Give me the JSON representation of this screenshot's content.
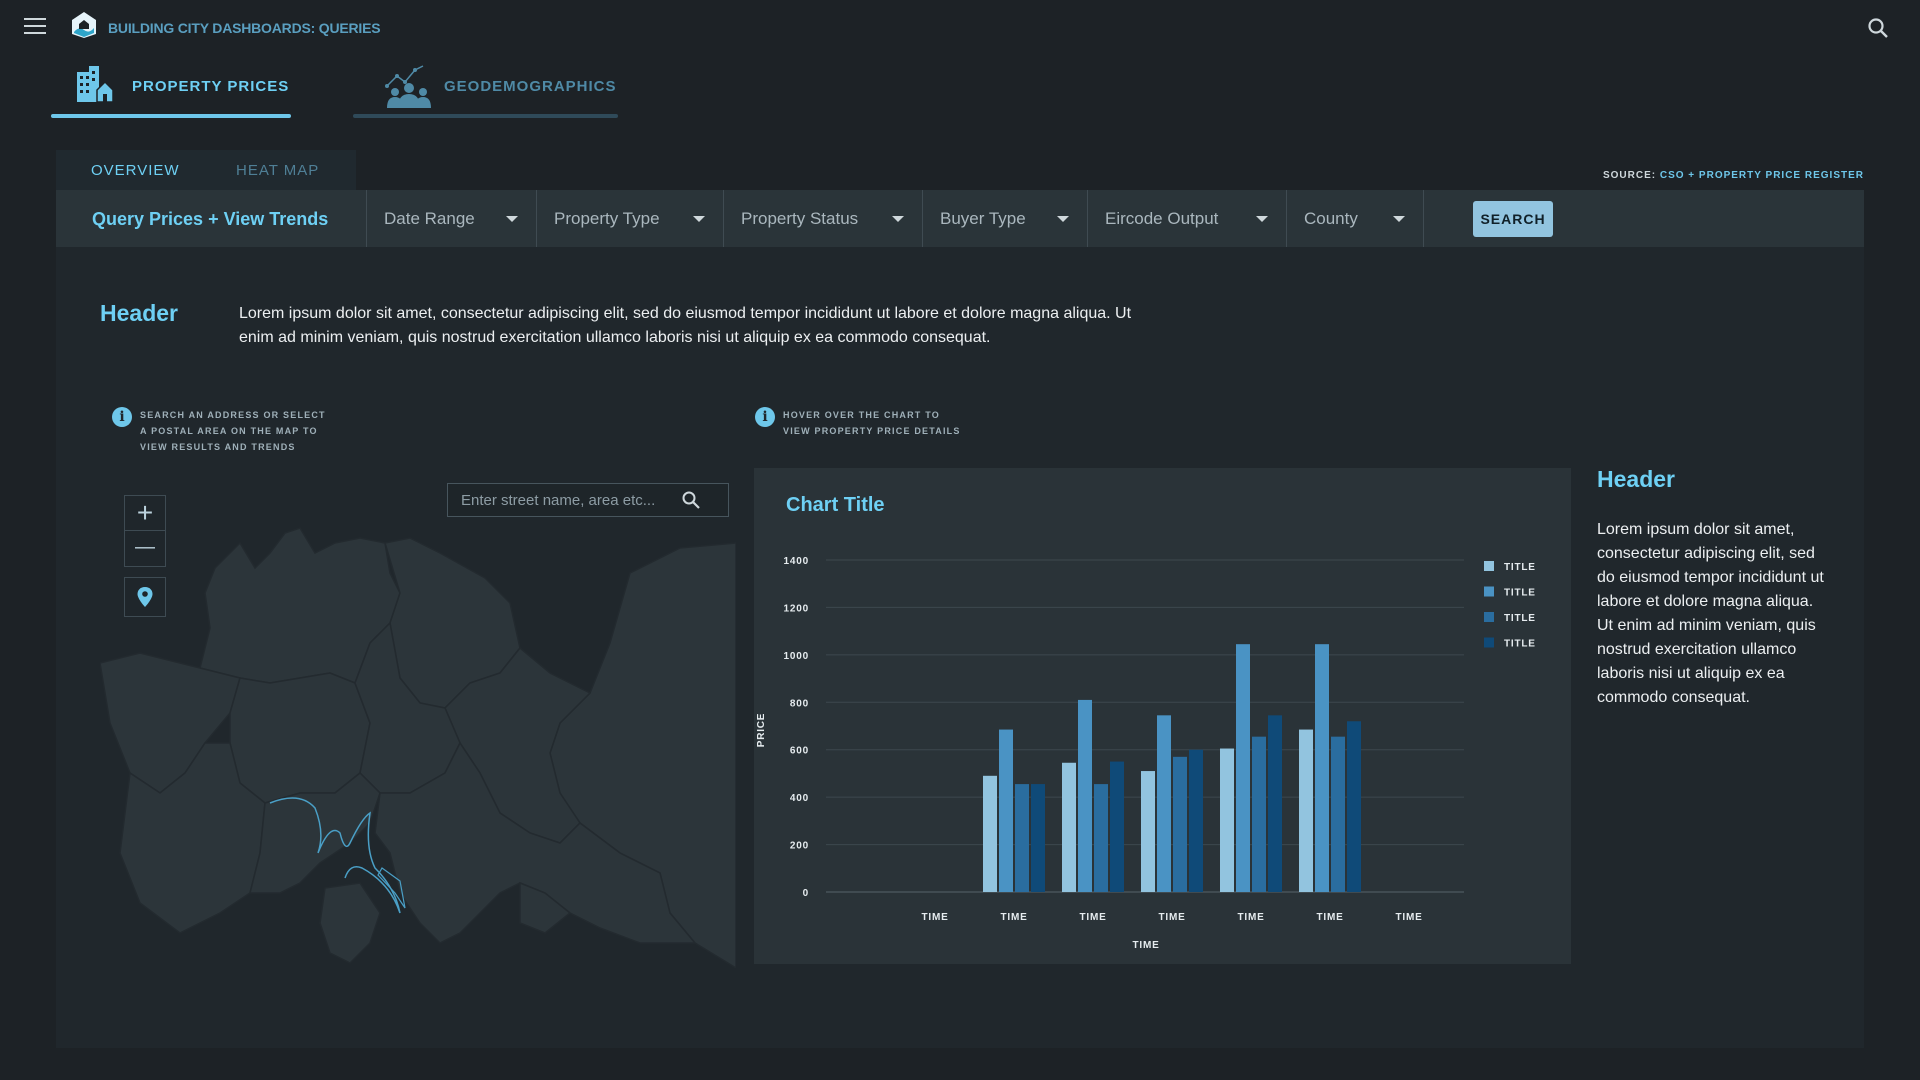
{
  "app": {
    "title": "BUILDING CITY DASHBOARDS: QUERIES"
  },
  "icons": {
    "menu": "hamburger-menu-icon",
    "logo": "house-map-logo",
    "search": "magnifier-icon",
    "property_prices": "buildings-icon",
    "geodemographics": "people-trend-icon",
    "info": "info-circle-icon",
    "zoom_in": "plus-icon",
    "zoom_out": "minus-icon",
    "locate": "map-pin-icon"
  },
  "main_tabs": [
    {
      "label": "PROPERTY PRICES",
      "active": true
    },
    {
      "label": "GEODEMOGRAPHICS",
      "active": false
    }
  ],
  "sub_tabs": [
    {
      "label": "OVERVIEW",
      "active": true
    },
    {
      "label": "HEAT MAP",
      "active": false
    }
  ],
  "source": {
    "prefix": "SOURCE:",
    "link": "CSO + PROPERTY PRICE REGISTER"
  },
  "query_bar": {
    "title": "Query Prices + View Trends",
    "filters": [
      "Date Range",
      "Property Type",
      "Property Status",
      "Buyer Type",
      "Eircode Output",
      "County"
    ],
    "search_label": "SEARCH"
  },
  "intro": {
    "header": "Header",
    "text": "Lorem ipsum dolor sit amet, consectetur adipiscing elit, sed do eiusmod tempor incididunt ut labore et dolore magna aliqua. Ut enim ad minim veniam, quis nostrud exercitation ullamco laboris nisi ut aliquip ex ea commodo consequat."
  },
  "map_info": "SEARCH AN ADDRESS OR SELECT\nA POSTAL AREA ON THE MAP TO\nVIEW RESULTS AND TRENDS",
  "chart_info": "HOVER OVER THE CHART TO\nVIEW PROPERTY PRICE DETAILS",
  "map": {
    "search_placeholder": "Enter street name, area etc...",
    "zoom_in": "+",
    "zoom_out": "—"
  },
  "colors": {
    "accent": "#6ed0f4",
    "series": [
      "#92c4df",
      "#4a93c4",
      "#2a6d9f",
      "#0f4a78"
    ]
  },
  "chart_data": {
    "type": "bar",
    "title": "Chart Title",
    "xlabel": "TIME",
    "ylabel": "PRICE",
    "categories": [
      "TIME",
      "TIME",
      "TIME",
      "TIME",
      "TIME",
      "TIME",
      "TIME"
    ],
    "series": [
      {
        "name": "TITLE",
        "color": "#92c4df",
        "values": [
          null,
          490,
          545,
          510,
          605,
          685,
          null
        ]
      },
      {
        "name": "TITLE",
        "color": "#4a93c4",
        "values": [
          null,
          685,
          810,
          745,
          1045,
          1045,
          null
        ]
      },
      {
        "name": "TITLE",
        "color": "#2a6d9f",
        "values": [
          null,
          455,
          455,
          570,
          655,
          655,
          null
        ]
      },
      {
        "name": "TITLE",
        "color": "#0f4a78",
        "values": [
          null,
          455,
          550,
          600,
          745,
          720,
          null
        ]
      }
    ],
    "yticks": [
      0,
      200,
      400,
      600,
      800,
      1000,
      1200,
      1400
    ],
    "ylim": [
      0,
      1400
    ],
    "grid": true,
    "legend": "right"
  },
  "side": {
    "header": "Header",
    "text": "Lorem ipsum dolor sit amet, consectetur adipiscing elit, sed do eiusmod tempor incididunt ut labore et dolore magna aliqua. Ut enim ad minim veniam, quis nostrud exercitation ullamco laboris nisi ut aliquip ex ea commodo consequat."
  }
}
